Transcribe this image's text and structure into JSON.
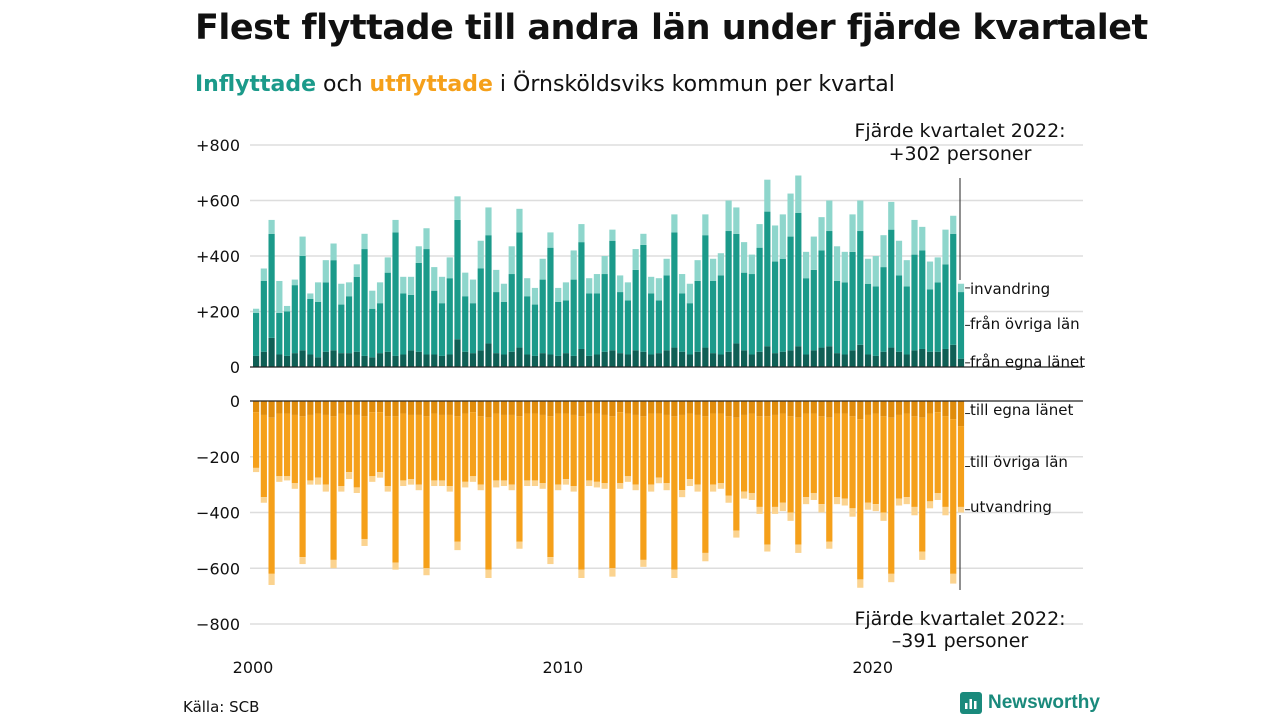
{
  "title": "Flest flyttade till andra län under fjärde kvartalet",
  "subtitle": {
    "in_word": "Inflyttade",
    "mid": " och ",
    "out_word": "utflyttade",
    "rest": " i Örnsköldsviks kommun per kvartal"
  },
  "source": "Källa: SCB",
  "brand": "Newsworthy",
  "colors": {
    "in_own": "#0f5f55",
    "in_other": "#1b9a8a",
    "in_imm": "#8ed6cc",
    "out_own": "#e08c0c",
    "out_other": "#f5a01a",
    "out_emig": "#fbd38f",
    "grid": "#dddddd",
    "text": "#111111"
  },
  "chart_data": {
    "type": "bar",
    "stacked": true,
    "x_ticks": [
      "2000",
      "2010",
      "2020"
    ],
    "quarters_start": "2000 Q1",
    "quarters_end": "2022 Q4",
    "y_ticks_top": [
      "+800",
      "+600",
      "+400",
      "+200",
      "0"
    ],
    "y_ticks_bottom": [
      "0",
      "−200",
      "−400",
      "−600",
      "−800"
    ],
    "ylim_top": [
      0,
      800
    ],
    "ylim_bottom": [
      -800,
      0
    ],
    "legend_in": [
      "invandring",
      "från övriga län",
      "från egna länet"
    ],
    "legend_out": [
      "till egna länet",
      "till övriga län",
      "utvandring"
    ],
    "annotation_top": [
      "Fjärde kvartalet 2022:",
      "+302 personer"
    ],
    "annotation_bottom": [
      "Fjärde kvartalet 2022:",
      "–391 personer"
    ],
    "series_in": [
      {
        "name": "från egna länet",
        "values": [
          40,
          55,
          105,
          45,
          40,
          50,
          60,
          45,
          35,
          55,
          60,
          50,
          50,
          55,
          40,
          35,
          50,
          55,
          40,
          45,
          60,
          55,
          45,
          45,
          40,
          45,
          100,
          55,
          50,
          60,
          85,
          50,
          45,
          55,
          70,
          45,
          40,
          50,
          45,
          40,
          50,
          40,
          65,
          40,
          45,
          55,
          60,
          50,
          45,
          60,
          55,
          45,
          50,
          60,
          70,
          55,
          45,
          55,
          70,
          50,
          45,
          55,
          85,
          60,
          45,
          55,
          75,
          50,
          55,
          60,
          75,
          45,
          60,
          70,
          75,
          50,
          45,
          60,
          80,
          45,
          40,
          55,
          70,
          55,
          45,
          60,
          65,
          55,
          55,
          65,
          80,
          30
        ]
      },
      {
        "name": "från övriga län",
        "values": [
          155,
          255,
          375,
          150,
          160,
          245,
          340,
          200,
          200,
          250,
          325,
          175,
          205,
          270,
          385,
          175,
          180,
          285,
          445,
          220,
          200,
          320,
          380,
          230,
          190,
          275,
          430,
          200,
          180,
          295,
          390,
          220,
          190,
          280,
          415,
          210,
          185,
          265,
          385,
          195,
          190,
          275,
          385,
          225,
          220,
          280,
          395,
          220,
          195,
          290,
          385,
          220,
          190,
          270,
          415,
          210,
          185,
          255,
          405,
          260,
          285,
          435,
          395,
          280,
          290,
          375,
          485,
          330,
          335,
          410,
          480,
          275,
          290,
          350,
          415,
          260,
          260,
          355,
          410,
          255,
          250,
          305,
          425,
          275,
          245,
          345,
          355,
          225,
          250,
          305,
          400,
          240
        ]
      },
      {
        "name": "invandring",
        "values": [
          15,
          45,
          50,
          115,
          20,
          20,
          70,
          20,
          70,
          80,
          60,
          75,
          50,
          45,
          55,
          65,
          75,
          55,
          45,
          60,
          65,
          60,
          75,
          85,
          95,
          75,
          85,
          85,
          85,
          100,
          100,
          80,
          65,
          100,
          85,
          65,
          60,
          75,
          55,
          50,
          65,
          105,
          65,
          55,
          70,
          65,
          40,
          60,
          65,
          75,
          40,
          60,
          80,
          60,
          65,
          70,
          70,
          75,
          75,
          80,
          80,
          110,
          95,
          110,
          70,
          85,
          115,
          130,
          160,
          155,
          135,
          95,
          120,
          120,
          110,
          125,
          110,
          135,
          110,
          90,
          110,
          115,
          100,
          125,
          95,
          125,
          85,
          100,
          90,
          125,
          65,
          30
        ]
      }
    ],
    "series_out": [
      {
        "name": "till egna länet",
        "values": [
          -40,
          -50,
          -60,
          -45,
          -45,
          -50,
          -55,
          -50,
          -45,
          -50,
          -55,
          -45,
          -50,
          -50,
          -55,
          -40,
          -40,
          -55,
          -55,
          -45,
          -50,
          -50,
          -55,
          -45,
          -50,
          -50,
          -55,
          -45,
          -40,
          -55,
          -60,
          -45,
          -50,
          -50,
          -55,
          -45,
          -45,
          -50,
          -55,
          -45,
          -45,
          -50,
          -55,
          -45,
          -45,
          -50,
          -55,
          -40,
          -45,
          -50,
          -55,
          -45,
          -45,
          -50,
          -55,
          -50,
          -45,
          -50,
          -55,
          -45,
          -45,
          -55,
          -60,
          -50,
          -45,
          -55,
          -55,
          -50,
          -45,
          -55,
          -60,
          -45,
          -45,
          -55,
          -60,
          -45,
          -45,
          -55,
          -65,
          -50,
          -45,
          -55,
          -60,
          -50,
          -45,
          -55,
          -60,
          -45,
          -40,
          -55,
          -65,
          -90
        ]
      },
      {
        "name": "till övriga län",
        "values": [
          -200,
          -295,
          -560,
          -225,
          -225,
          -245,
          -505,
          -235,
          -230,
          -250,
          -515,
          -260,
          -205,
          -260,
          -440,
          -230,
          -215,
          -250,
          -525,
          -240,
          -230,
          -250,
          -545,
          -240,
          -235,
          -255,
          -450,
          -245,
          -230,
          -245,
          -545,
          -240,
          -235,
          -250,
          -450,
          -240,
          -240,
          -245,
          -505,
          -255,
          -235,
          -255,
          -550,
          -240,
          -245,
          -245,
          -545,
          -255,
          -225,
          -250,
          -515,
          -255,
          -230,
          -245,
          -550,
          -270,
          -235,
          -250,
          -490,
          -255,
          -250,
          -285,
          -405,
          -275,
          -285,
          -325,
          -460,
          -330,
          -320,
          -345,
          -455,
          -300,
          -285,
          -315,
          -445,
          -300,
          -305,
          -330,
          -575,
          -315,
          -325,
          -345,
          -560,
          -300,
          -300,
          -325,
          -480,
          -315,
          -290,
          -325,
          -555,
          -290
        ]
      },
      {
        "name": "utvandring",
        "values": [
          -15,
          -20,
          -40,
          -20,
          -15,
          -20,
          -25,
          -15,
          -25,
          -25,
          -30,
          -20,
          -25,
          -20,
          -25,
          -20,
          -20,
          -20,
          -25,
          -20,
          -20,
          -20,
          -25,
          -20,
          -20,
          -20,
          -30,
          -20,
          -20,
          -20,
          -30,
          -25,
          -20,
          -20,
          -25,
          -20,
          -20,
          -20,
          -25,
          -20,
          -20,
          -20,
          -30,
          -20,
          -20,
          -20,
          -30,
          -20,
          -20,
          -20,
          -25,
          -25,
          -20,
          -25,
          -30,
          -25,
          -25,
          -25,
          -30,
          -25,
          -20,
          -25,
          -25,
          -25,
          -25,
          -25,
          -25,
          -25,
          -30,
          -30,
          -30,
          -25,
          -25,
          -30,
          -25,
          -25,
          -25,
          -30,
          -30,
          -25,
          -25,
          -30,
          -30,
          -25,
          -25,
          -30,
          -30,
          -25,
          -25,
          -30,
          -35,
          -20
        ]
      }
    ]
  }
}
